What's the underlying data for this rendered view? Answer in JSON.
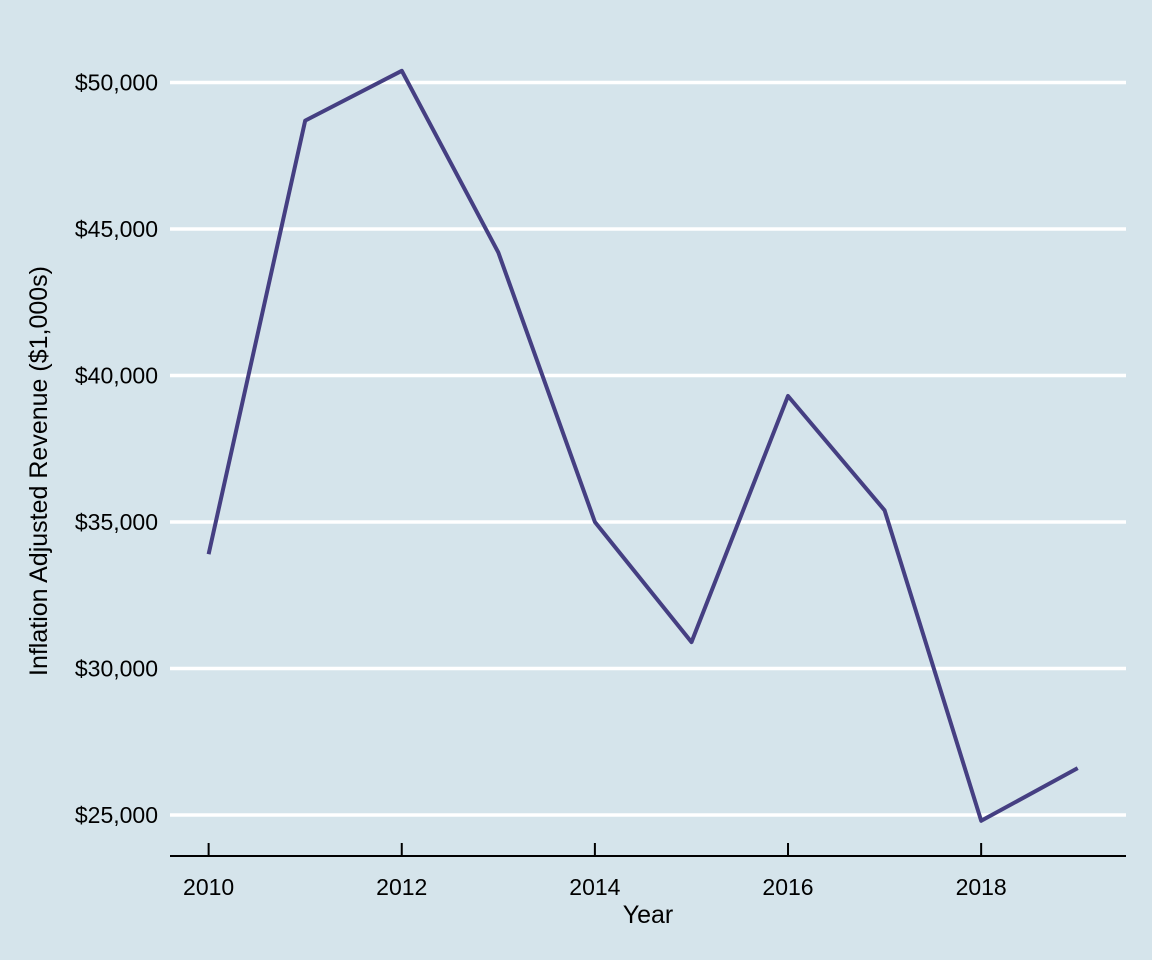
{
  "chart_data": {
    "type": "line",
    "title": "",
    "xlabel": "Year",
    "ylabel": "Inflation Adjusted Revenue ($1,000s)",
    "x": [
      2010,
      2011,
      2012,
      2013,
      2014,
      2015,
      2016,
      2017,
      2018,
      2019
    ],
    "series": [
      {
        "name": "Inflation Adjusted Revenue",
        "values": [
          33900,
          48700,
          50400,
          44200,
          35000,
          30900,
          39300,
          35400,
          24800,
          26600
        ]
      }
    ],
    "xlim": [
      2009.6,
      2019.5
    ],
    "ylim": [
      23600,
      50700
    ],
    "x_ticks": [
      2010,
      2012,
      2014,
      2016,
      2018
    ],
    "x_tick_labels": [
      "2010",
      "2012",
      "2014",
      "2016",
      "2018"
    ],
    "y_ticks": [
      25000,
      30000,
      35000,
      40000,
      45000,
      50000
    ],
    "y_tick_labels": [
      "$25,000",
      "$30,000",
      "$35,000",
      "$40,000",
      "$45,000",
      "$50,000"
    ],
    "grid": "horizontal",
    "legend": "none",
    "colors": {
      "background": "#d5e4eb",
      "gridline": "#ffffff",
      "line": "#453f82",
      "axis": "#000000"
    }
  }
}
